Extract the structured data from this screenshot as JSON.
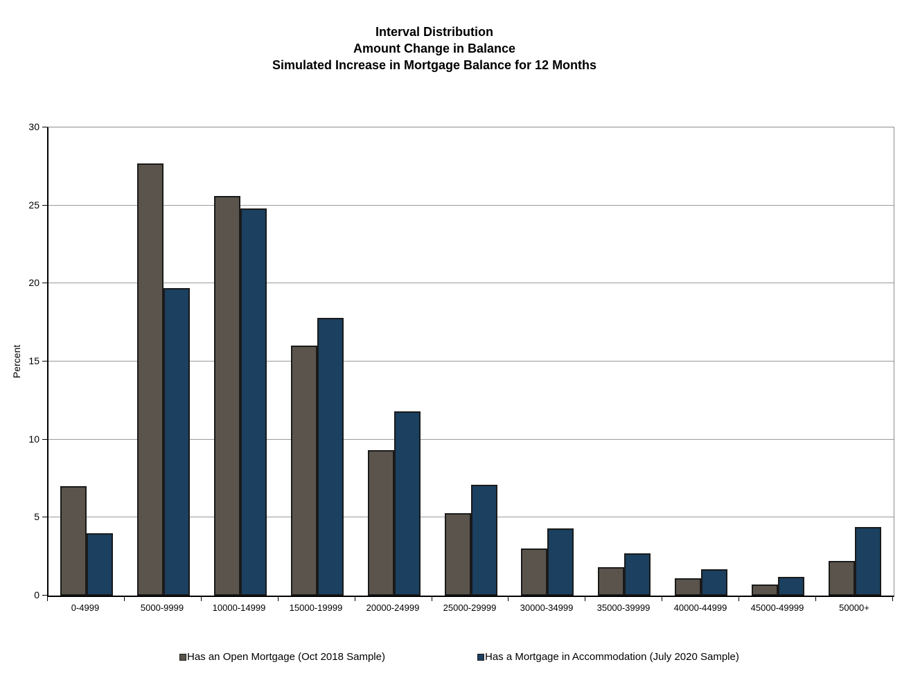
{
  "chart_data": {
    "type": "bar",
    "title_lines": [
      "Interval Distribution",
      "Amount Change in Balance",
      "Simulated Increase in Mortgage Balance for 12 Months"
    ],
    "ylabel": "Percent",
    "xlabel": "",
    "ylim": [
      0,
      30
    ],
    "ytick_step": 5,
    "ytick_labels": [
      "0",
      "5",
      "10",
      "15",
      "20",
      "25",
      "30"
    ],
    "grid": true,
    "legend_position": "bottom",
    "categories": [
      "0-4999",
      "5000-9999",
      "10000-14999",
      "15000-19999",
      "20000-24999",
      "25000-29999",
      "30000-34999",
      "35000-39999",
      "40000-44999",
      "45000-49999",
      "50000+"
    ],
    "series": [
      {
        "name": "Has an Open Mortgage (Oct 2018 Sample)",
        "color": "#5B544C",
        "values": [
          7.0,
          27.7,
          25.6,
          16.0,
          9.3,
          5.3,
          3.0,
          1.8,
          1.1,
          0.7,
          2.2
        ]
      },
      {
        "name": "Has a Mortgage in Accommodation (July 2020 Sample)",
        "color": "#1B4060",
        "values": [
          4.0,
          19.7,
          24.8,
          17.8,
          11.8,
          7.1,
          4.3,
          2.7,
          1.7,
          1.2,
          4.4
        ]
      }
    ],
    "colors": {
      "bar_border": "#1a1a1a",
      "gridline": "#999999",
      "axis": "#000000",
      "frame": "#8c8c8c"
    }
  }
}
